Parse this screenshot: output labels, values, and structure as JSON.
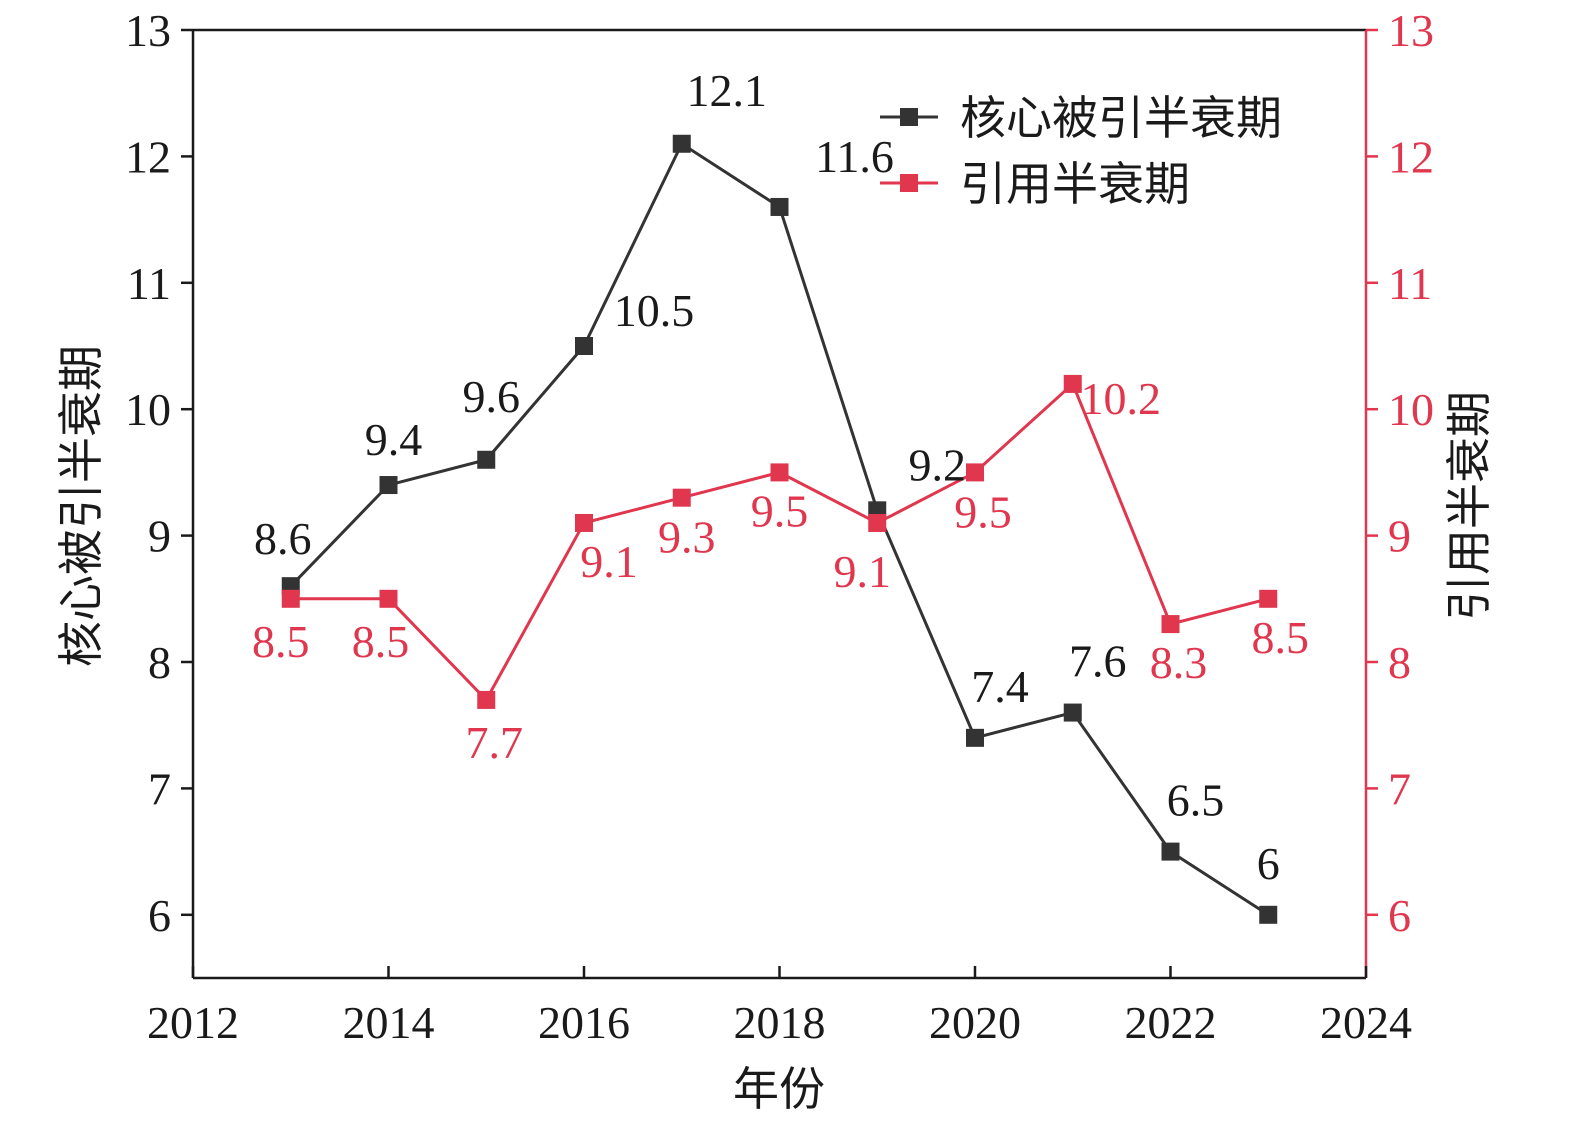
{
  "chart_data": {
    "type": "line",
    "xlabel": "年份",
    "ylabel_left": "核心被引半衰期",
    "ylabel_right": "引用半衰期",
    "xlim": [
      2012,
      2024
    ],
    "xticks": [
      "2012",
      "2014",
      "2016",
      "2018",
      "2020",
      "2022",
      "2024"
    ],
    "ylim": [
      5.5,
      13
    ],
    "yticks": [
      "6",
      "7",
      "8",
      "9",
      "10",
      "11",
      "12",
      "13"
    ],
    "grid": false,
    "legend_position": "top-right",
    "x": [
      2013,
      2014,
      2015,
      2016,
      2017,
      2018,
      2019,
      2020,
      2021,
      2022,
      2023
    ],
    "series": [
      {
        "name": "核心被引半衰期",
        "axis": "left",
        "color": "#333333",
        "marker": "square",
        "values": [
          8.6,
          9.4,
          9.6,
          10.5,
          12.1,
          11.6,
          9.2,
          7.4,
          7.6,
          6.5,
          6
        ],
        "labels": [
          "8.6",
          "9.4",
          "9.6",
          "10.5",
          "12.1",
          "11.6",
          "9.2",
          "7.4",
          "7.6",
          "6.5",
          "6"
        ]
      },
      {
        "name": "引用半衰期",
        "axis": "right",
        "color": "#e0364e",
        "marker": "square",
        "values": [
          8.5,
          8.5,
          7.7,
          9.1,
          9.3,
          9.5,
          9.1,
          9.5,
          10.2,
          8.3,
          8.5
        ],
        "labels": [
          "8.5",
          "8.5",
          "7.7",
          "9.1",
          "9.3",
          "9.5",
          "9.1",
          "9.5",
          "10.2",
          "8.3",
          "8.5"
        ]
      }
    ],
    "colors": {
      "left_axis": "#1a1a1a",
      "right_axis": "#e0364e"
    }
  }
}
